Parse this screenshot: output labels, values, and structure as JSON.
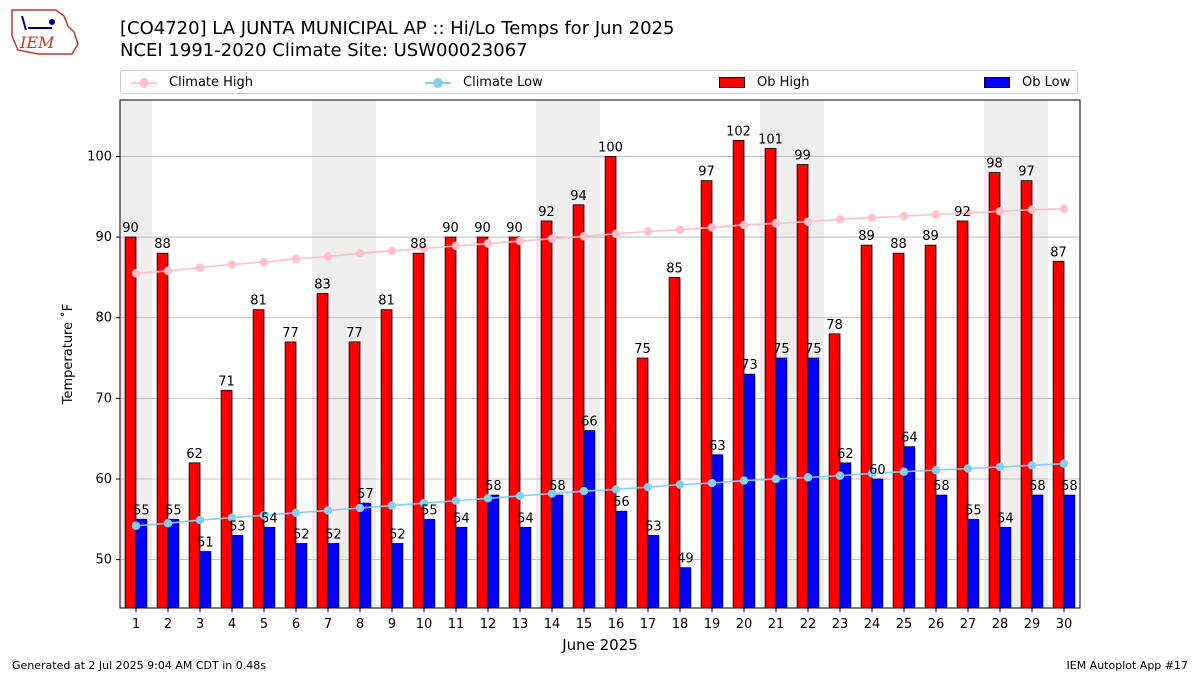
{
  "logo_text": "IEM",
  "title_line1": "[CO4720] LA JUNTA MUNICIPAL AP :: Hi/Lo Temps for Jun 2025",
  "title_line2": "NCEI 1991-2020 Climate Site: USW00023067",
  "footer_left": "Generated at 2 Jul 2025 9:04 AM CDT in 0.48s",
  "footer_right": "IEM Autoplot App #17",
  "colors": {
    "ob_high": "#ff0000",
    "ob_low": "#0000ff",
    "climate_high": "#ffc0cb",
    "climate_low": "#87ceeb",
    "weekend_band": "#eeeeee",
    "grid": "#b0b0b0"
  },
  "chart_data": {
    "type": "bar",
    "xlabel": "June 2025",
    "ylabel": "Temperature ˚F",
    "ylim": [
      44,
      107
    ],
    "yticks": [
      50,
      60,
      70,
      80,
      90,
      100
    ],
    "grid": "horizontal",
    "legend_position": "top",
    "categories": [
      "1",
      "2",
      "3",
      "4",
      "5",
      "6",
      "7",
      "8",
      "9",
      "10",
      "11",
      "12",
      "13",
      "14",
      "15",
      "16",
      "17",
      "18",
      "19",
      "20",
      "21",
      "22",
      "23",
      "24",
      "25",
      "26",
      "27",
      "28",
      "29",
      "30"
    ],
    "weekend_days": [
      1,
      7,
      8,
      14,
      15,
      21,
      22,
      28,
      29
    ],
    "series": [
      {
        "name": "Climate High",
        "kind": "line",
        "values": [
          85.5,
          85.8,
          86.2,
          86.6,
          86.9,
          87.3,
          87.6,
          88.0,
          88.3,
          88.6,
          88.9,
          89.2,
          89.5,
          89.8,
          90.1,
          90.4,
          90.7,
          90.9,
          91.2,
          91.5,
          91.7,
          91.9,
          92.2,
          92.4,
          92.6,
          92.8,
          93.0,
          93.2,
          93.4,
          93.5
        ]
      },
      {
        "name": "Climate Low",
        "kind": "line",
        "values": [
          54.2,
          54.5,
          54.9,
          55.2,
          55.5,
          55.8,
          56.1,
          56.4,
          56.7,
          57.0,
          57.3,
          57.6,
          57.9,
          58.2,
          58.5,
          58.7,
          59.0,
          59.3,
          59.5,
          59.8,
          60.0,
          60.2,
          60.4,
          60.7,
          60.9,
          61.1,
          61.3,
          61.5,
          61.7,
          61.9
        ]
      },
      {
        "name": "Ob High",
        "kind": "bar",
        "values": [
          90,
          88,
          62,
          71,
          81,
          77,
          83,
          77,
          81,
          88,
          90,
          90,
          90,
          92,
          94,
          100,
          75,
          85,
          97,
          102,
          101,
          99,
          78,
          89,
          88,
          89,
          92,
          98,
          97,
          87
        ]
      },
      {
        "name": "Ob Low",
        "kind": "bar",
        "values": [
          55,
          55,
          51,
          53,
          54,
          52,
          52,
          57,
          52,
          55,
          54,
          58,
          54,
          58,
          66,
          56,
          53,
          49,
          63,
          73,
          75,
          75,
          62,
          60,
          64,
          58,
          55,
          54,
          58,
          58
        ]
      }
    ]
  }
}
